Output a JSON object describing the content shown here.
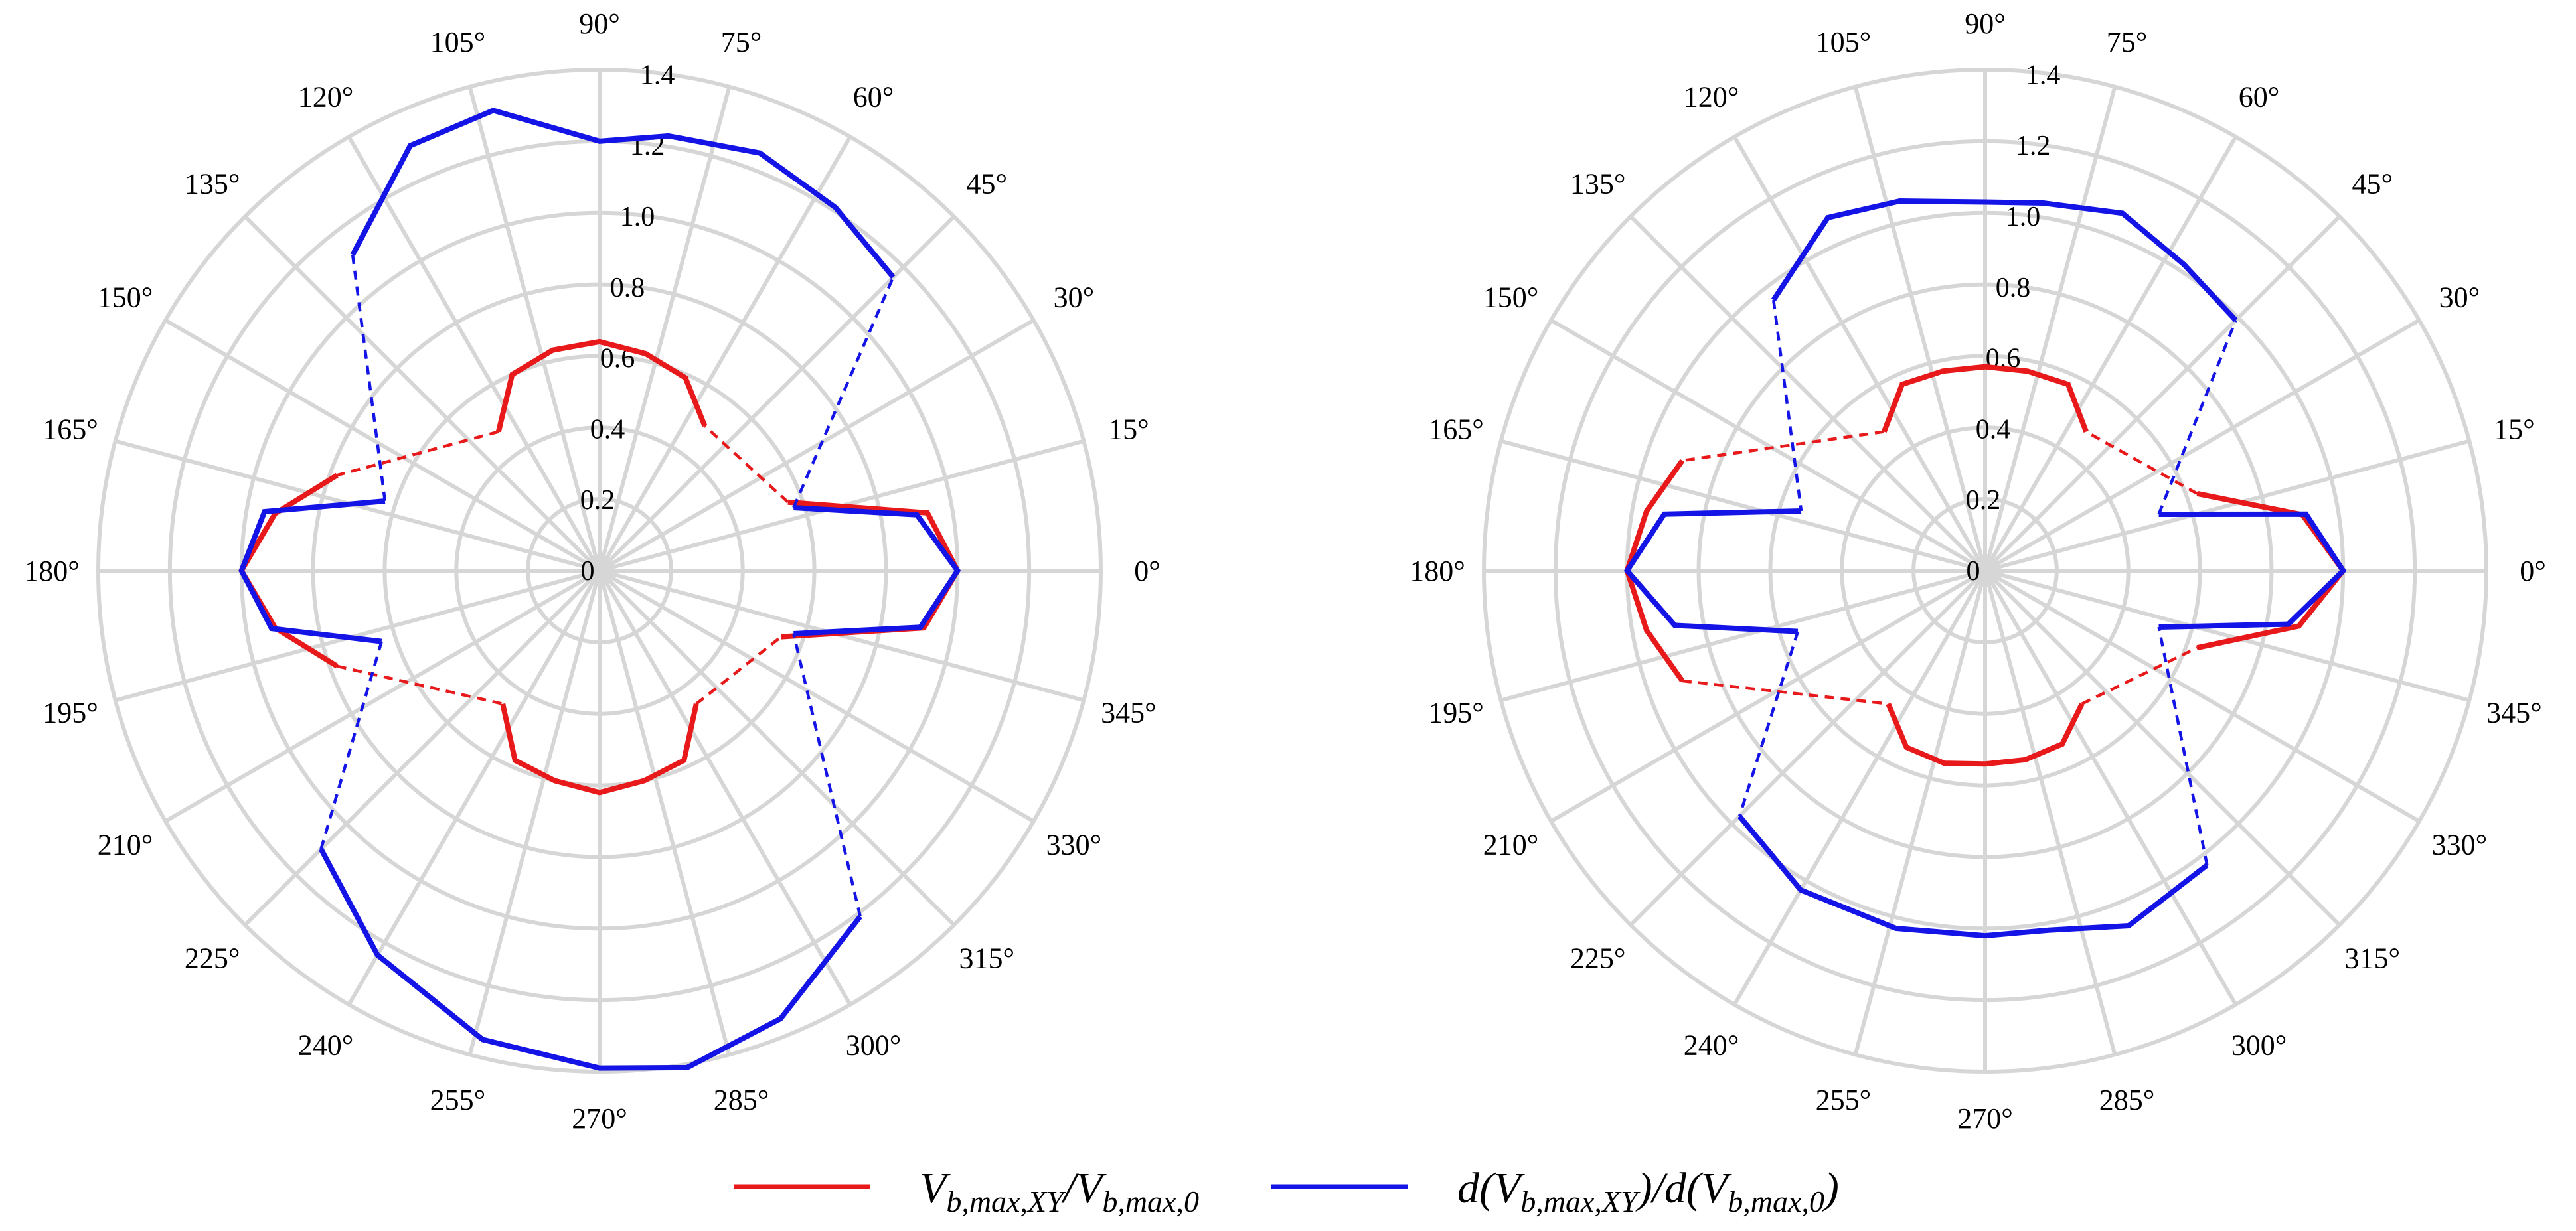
{
  "chart_data": [
    {
      "type": "polar-line",
      "r_range": [
        0,
        1.4
      ],
      "r_ticks": [
        0,
        0.2,
        0.4,
        0.6,
        0.8,
        1.0,
        1.2,
        1.4
      ],
      "r_tick_labels": [
        "0",
        "0.2",
        "0.4",
        "0.6",
        "0.8",
        "1.0",
        "1.2",
        "1.4"
      ],
      "r_tick_label_angle_deg": 82,
      "angle_ticks_deg": [
        0,
        15,
        30,
        45,
        60,
        75,
        90,
        105,
        120,
        135,
        150,
        165,
        180,
        195,
        210,
        225,
        240,
        255,
        270,
        285,
        300,
        315,
        330,
        345
      ],
      "angle_tick_labels": [
        "0°",
        "15°",
        "30°",
        "45°",
        "60°",
        "75°",
        "90°",
        "105°",
        "120°",
        "135°",
        "150°",
        "165°",
        "180°",
        "195°",
        "210°",
        "225°",
        "240°",
        "255°",
        "270°",
        "285°",
        "300°",
        "315°",
        "330°",
        "345°"
      ],
      "grid": true,
      "series": [
        {
          "color": "#e8191a",
          "segments": [
            {
              "theta": [
                -20,
                -10,
                0,
                10,
                20
              ],
              "r": [
                0.54,
                0.92,
                1.0,
                0.93,
                0.56
              ]
            },
            {
              "theta": [
                54,
                66,
                78,
                90,
                102,
                114,
                126
              ],
              "r": [
                0.5,
                0.59,
                0.62,
                0.64,
                0.63,
                0.6,
                0.48
              ]
            },
            {
              "theta": [
                160,
                170,
                180,
                190,
                200
              ],
              "r": [
                0.78,
                0.92,
                1.0,
                0.92,
                0.78
              ]
            },
            {
              "theta": [
                234,
                246,
                258,
                270,
                282,
                294,
                306
              ],
              "r": [
                0.46,
                0.58,
                0.6,
                0.62,
                0.6,
                0.58,
                0.46
              ]
            }
          ],
          "dashed_connectors": [
            {
              "theta": [
                20,
                54
              ],
              "r": [
                0.56,
                0.5
              ]
            },
            {
              "theta": [
                126,
                160
              ],
              "r": [
                0.48,
                0.78
              ]
            },
            {
              "theta": [
                200,
                234
              ],
              "r": [
                0.78,
                0.46
              ]
            },
            {
              "theta": [
                306,
                340
              ],
              "r": [
                0.46,
                0.54
              ]
            }
          ]
        },
        {
          "color": "#1414e6",
          "segments": [
            {
              "theta": [
                -18,
                -10,
                0,
                10,
                18
              ],
              "r": [
                0.57,
                0.91,
                1.0,
                0.9,
                0.57
              ]
            },
            {
              "theta": [
                45,
                57,
                69,
                81,
                90,
                103,
                114,
                128
              ],
              "r": [
                1.16,
                1.21,
                1.25,
                1.23,
                1.2,
                1.32,
                1.3,
                1.12
              ]
            },
            {
              "theta": [
                162,
                170,
                180,
                190,
                198
              ],
              "r": [
                0.63,
                0.95,
                1.0,
                0.93,
                0.64
              ]
            },
            {
              "theta": [
                225,
                240,
                256,
                270,
                280,
                292,
                307
              ],
              "r": [
                1.1,
                1.24,
                1.35,
                1.39,
                1.41,
                1.35,
                1.21
              ]
            }
          ],
          "dashed_connectors": [
            {
              "theta": [
                18,
                45
              ],
              "r": [
                0.57,
                1.16
              ]
            },
            {
              "theta": [
                128,
                162
              ],
              "r": [
                1.12,
                0.63
              ]
            },
            {
              "theta": [
                198,
                225
              ],
              "r": [
                0.64,
                1.1
              ]
            },
            {
              "theta": [
                307,
                342
              ],
              "r": [
                1.21,
                0.57
              ]
            }
          ]
        }
      ]
    },
    {
      "type": "polar-line",
      "r_range": [
        0,
        1.4
      ],
      "r_ticks": [
        0,
        0.2,
        0.4,
        0.6,
        0.8,
        1.0,
        1.2,
        1.4
      ],
      "r_tick_labels": [
        "0",
        "0.2",
        "0.4",
        "0.6",
        "0.8",
        "1.0",
        "1.2",
        "1.4"
      ],
      "r_tick_label_angle_deg": 82,
      "angle_ticks_deg": [
        0,
        15,
        30,
        45,
        60,
        75,
        90,
        105,
        120,
        135,
        150,
        165,
        180,
        195,
        210,
        225,
        240,
        255,
        270,
        285,
        300,
        315,
        330,
        345
      ],
      "angle_tick_labels": [
        "0°",
        "15°",
        "30°",
        "45°",
        "60°",
        "75°",
        "90°",
        "105°",
        "120°",
        "135°",
        "150°",
        "165°",
        "180°",
        "195°",
        "210°",
        "225°",
        "240°",
        "255°",
        "270°",
        "285°",
        "300°",
        "315°",
        "330°",
        "345°"
      ],
      "grid": true,
      "series": [
        {
          "color": "#e8191a",
          "segments": [
            {
              "theta": [
                -20,
                -10,
                0,
                10,
                20
              ],
              "r": [
                0.63,
                0.89,
                1.0,
                0.9,
                0.63
              ]
            },
            {
              "theta": [
                54,
                66,
                78,
                90,
                102,
                114,
                126
              ],
              "r": [
                0.48,
                0.57,
                0.57,
                0.57,
                0.57,
                0.57,
                0.48
              ]
            },
            {
              "theta": [
                160,
                170,
                180,
                190,
                200
              ],
              "r": [
                0.9,
                0.96,
                1.0,
                0.96,
                0.9
              ]
            },
            {
              "theta": [
                234,
                246,
                258,
                270,
                282,
                294,
                306
              ],
              "r": [
                0.46,
                0.54,
                0.55,
                0.54,
                0.54,
                0.53,
                0.46
              ]
            }
          ],
          "dashed_connectors": [
            {
              "theta": [
                20,
                54
              ],
              "r": [
                0.63,
                0.48
              ]
            },
            {
              "theta": [
                126,
                160
              ],
              "r": [
                0.48,
                0.9
              ]
            },
            {
              "theta": [
                200,
                234
              ],
              "r": [
                0.9,
                0.46
              ]
            },
            {
              "theta": [
                306,
                340
              ],
              "r": [
                0.46,
                0.63
              ]
            }
          ]
        },
        {
          "color": "#1414e6",
          "segments": [
            {
              "theta": [
                -18,
                -10,
                0,
                10,
                18
              ],
              "r": [
                0.51,
                0.86,
                1.0,
                0.91,
                0.51
              ]
            },
            {
              "theta": [
                45,
                57,
                69,
                81,
                90,
                103,
                114,
                128
              ],
              "r": [
                0.99,
                1.02,
                1.07,
                1.04,
                1.03,
                1.06,
                1.08,
                0.96
              ]
            },
            {
              "theta": [
                162,
                170,
                180,
                190,
                198
              ],
              "r": [
                0.54,
                0.91,
                1.0,
                0.88,
                0.55
              ]
            },
            {
              "theta": [
                225,
                240,
                256,
                270,
                280,
                292,
                307
              ],
              "r": [
                0.97,
                1.03,
                1.03,
                1.02,
                1.02,
                1.07,
                1.03
              ]
            }
          ],
          "dashed_connectors": [
            {
              "theta": [
                18,
                45
              ],
              "r": [
                0.51,
                0.99
              ]
            },
            {
              "theta": [
                128,
                162
              ],
              "r": [
                0.96,
                0.54
              ]
            },
            {
              "theta": [
                198,
                225
              ],
              "r": [
                0.55,
                0.97
              ]
            },
            {
              "theta": [
                307,
                342
              ],
              "r": [
                1.03,
                0.51
              ]
            }
          ]
        }
      ]
    }
  ],
  "legend": {
    "placement": "bottom-center",
    "entries": [
      {
        "color": "#e8191a",
        "label": "V_{b,max,XY}/V_{b,max,0}"
      },
      {
        "color": "#1414e6",
        "label": "d(V_{b,max,XY})/d(V_{b,max,0})"
      }
    ]
  }
}
